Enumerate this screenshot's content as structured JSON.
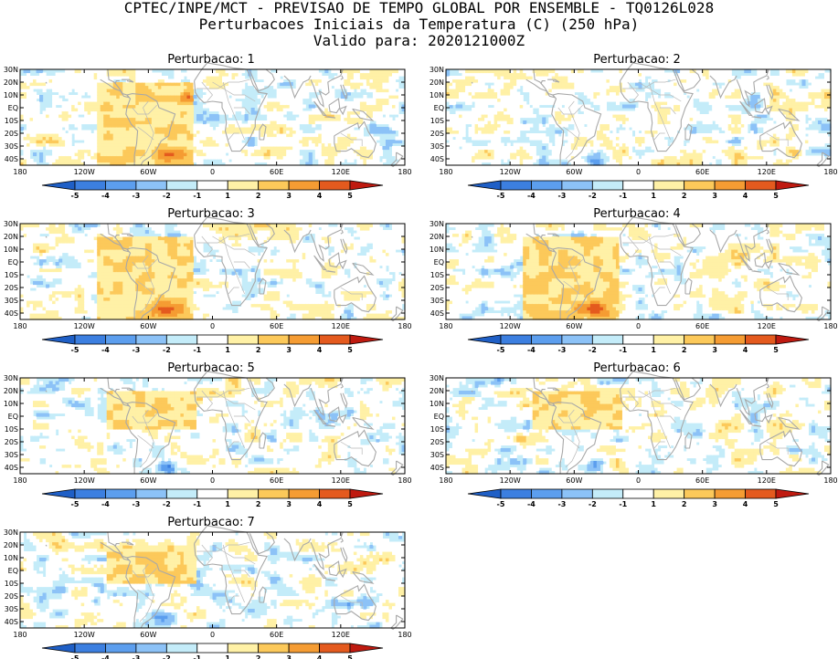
{
  "header": {
    "line1": "CPTEC/INPE/MCT - PREVISAO DE TEMPO GLOBAL POR ENSEMBLE - TQ0126L028",
    "line2": "Perturbacoes Iniciais da Temperatura (C) (250 hPa)",
    "line3": "Valido para: 2020121000Z"
  },
  "axes": {
    "x_ticks": [
      "180",
      "120W",
      "60W",
      "0",
      "60E",
      "120E",
      "180"
    ],
    "y_ticks": [
      "30N",
      "20N",
      "10N",
      "EQ",
      "10S",
      "20S",
      "30S",
      "40S"
    ]
  },
  "colorbar": {
    "labels": [
      "-5",
      "-4",
      "-3",
      "-2",
      "-1",
      "1",
      "2",
      "3",
      "4",
      "5"
    ],
    "colors": [
      "#1f5fc6",
      "#3c7fe0",
      "#5c9eee",
      "#8cc2f7",
      "#c4ecf9",
      "#ffffff",
      "#fff1a6",
      "#fcc95a",
      "#f59c33",
      "#e45a1e",
      "#bf1a10"
    ]
  },
  "chart_data": [
    {
      "type": "heatmap",
      "title": "Perturbacao: 1",
      "variable": "Temperature perturbation (C)",
      "level": "250 hPa",
      "xlim": [
        -180,
        180
      ],
      "ylim": [
        -45,
        30
      ],
      "warm_box": {
        "lon": [
          -110,
          -20
        ],
        "lat": [
          -45,
          20
        ]
      },
      "color_range": [
        -5,
        5
      ]
    },
    {
      "type": "heatmap",
      "title": "Perturbacao: 2",
      "variable": "Temperature perturbation (C)",
      "level": "250 hPa",
      "xlim": [
        -180,
        180
      ],
      "ylim": [
        -45,
        30
      ],
      "warm_box": null,
      "color_range": [
        -5,
        5
      ]
    },
    {
      "type": "heatmap",
      "title": "Perturbacao: 3",
      "variable": "Temperature perturbation (C)",
      "level": "250 hPa",
      "xlim": [
        -180,
        180
      ],
      "ylim": [
        -45,
        30
      ],
      "warm_box": {
        "lon": [
          -110,
          -20
        ],
        "lat": [
          -45,
          20
        ]
      },
      "color_range": [
        -5,
        5
      ]
    },
    {
      "type": "heatmap",
      "title": "Perturbacao: 4",
      "variable": "Temperature perturbation (C)",
      "level": "250 hPa",
      "xlim": [
        -180,
        180
      ],
      "ylim": [
        -45,
        30
      ],
      "warm_box": {
        "lon": [
          -110,
          -20
        ],
        "lat": [
          -45,
          20
        ]
      },
      "color_range": [
        -5,
        5
      ]
    },
    {
      "type": "heatmap",
      "title": "Perturbacao: 5",
      "variable": "Temperature perturbation (C)",
      "level": "250 hPa",
      "xlim": [
        -180,
        180
      ],
      "ylim": [
        -45,
        30
      ],
      "warm_box": {
        "lon": [
          -100,
          -15
        ],
        "lat": [
          -10,
          20
        ]
      },
      "color_range": [
        -5,
        5
      ]
    },
    {
      "type": "heatmap",
      "title": "Perturbacao: 6",
      "variable": "Temperature perturbation (C)",
      "level": "250 hPa",
      "xlim": [
        -180,
        180
      ],
      "ylim": [
        -45,
        30
      ],
      "warm_box": {
        "lon": [
          -100,
          -15
        ],
        "lat": [
          -10,
          20
        ]
      },
      "color_range": [
        -5,
        5
      ]
    },
    {
      "type": "heatmap",
      "title": "Perturbacao: 7",
      "variable": "Temperature perturbation (C)",
      "level": "250 hPa",
      "xlim": [
        -180,
        180
      ],
      "ylim": [
        -45,
        30
      ],
      "warm_box": {
        "lon": [
          -100,
          -15
        ],
        "lat": [
          -10,
          20
        ]
      },
      "color_range": [
        -5,
        5
      ]
    }
  ]
}
